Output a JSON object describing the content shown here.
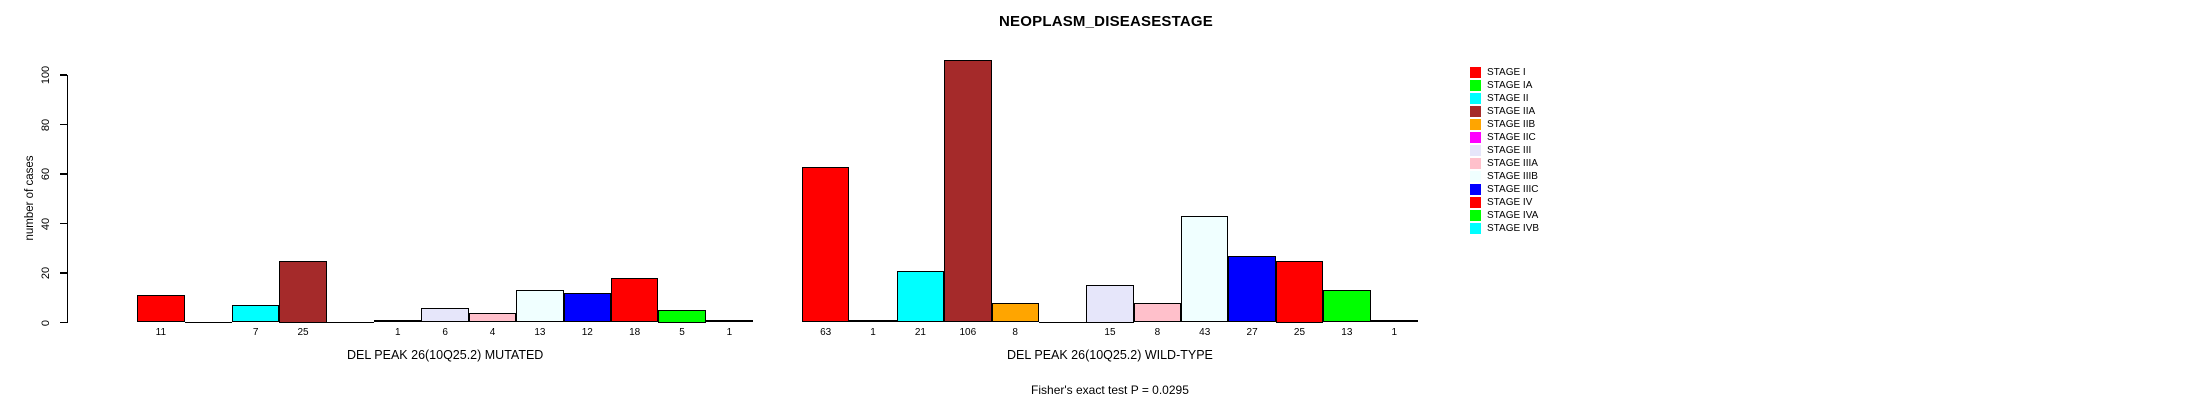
{
  "chart_data": {
    "type": "bar",
    "title": "NEOPLASM_DISEASESTAGE",
    "ylabel": "number of cases",
    "yticks": [
      0,
      20,
      40,
      60,
      80,
      100
    ],
    "ylim": [
      0,
      106
    ],
    "grid": false,
    "legend_position": "right",
    "categories": [
      "STAGE I",
      "STAGE IA",
      "STAGE II",
      "STAGE IIA",
      "STAGE IIB",
      "STAGE IIC",
      "STAGE III",
      "STAGE IIIA",
      "STAGE IIIB",
      "STAGE IIIC",
      "STAGE IV",
      "STAGE IVA",
      "STAGE IVB"
    ],
    "category_colors": [
      "#FF0000",
      "#00FF00",
      "#00FFFF",
      "#A52A2A",
      "#FFA500",
      "#FF00FF",
      "#E6E6FA",
      "#FFC0CB",
      "#F0FFFF",
      "#0000FF",
      "#FF0000",
      "#00FF00",
      "#00FFFF"
    ],
    "series": [
      {
        "name": "DEL PEAK 26(10Q25.2) MUTATED",
        "values": [
          11,
          0,
          7,
          25,
          0,
          1,
          6,
          4,
          13,
          12,
          18,
          5,
          1
        ]
      },
      {
        "name": "DEL PEAK 26(10Q25.2) WILD-TYPE",
        "values": [
          63,
          1,
          21,
          106,
          8,
          0,
          15,
          8,
          43,
          27,
          25,
          13,
          1
        ]
      }
    ],
    "bar_border_color": "#000000",
    "footer": "Fisher's exact test P = 0.0295"
  }
}
